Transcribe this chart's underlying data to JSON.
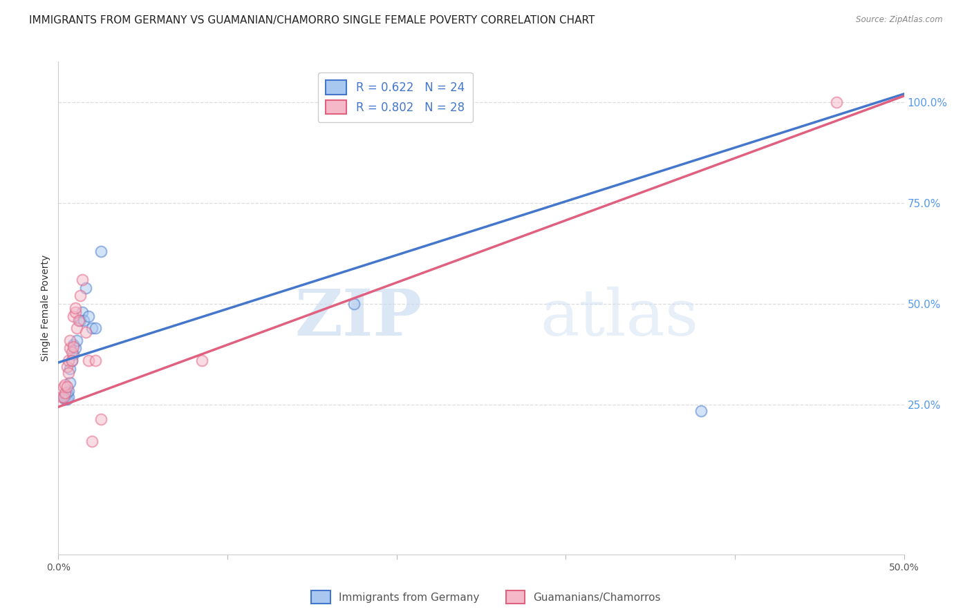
{
  "title": "IMMIGRANTS FROM GERMANY VS GUAMANIAN/CHAMORRO SINGLE FEMALE POVERTY CORRELATION CHART",
  "source": "Source: ZipAtlas.com",
  "ylabel": "Single Female Poverty",
  "xlim": [
    0,
    0.5
  ],
  "ylim": [
    -0.12,
    1.1
  ],
  "xticks": [
    0.0,
    0.1,
    0.2,
    0.3,
    0.4,
    0.5
  ],
  "xticklabels": [
    "0.0%",
    "",
    "",
    "",
    "",
    "50.0%"
  ],
  "yticks_right": [
    0.25,
    0.5,
    0.75,
    1.0
  ],
  "ytick_labels_right": [
    "25.0%",
    "50.0%",
    "75.0%",
    "100.0%"
  ],
  "legend_R1": "R = 0.622",
  "legend_N1": "N = 24",
  "legend_R2": "R = 0.802",
  "legend_N2": "N = 28",
  "label1": "Immigrants from Germany",
  "label2": "Guamanians/Chamorros",
  "color_blue": "#A8C8F0",
  "color_pink": "#F5B8C8",
  "line_blue": "#4477CC",
  "line_pink": "#E06080",
  "watermark_zip": "ZIP",
  "watermark_atlas": "atlas",
  "blue_points_x": [
    0.003,
    0.004,
    0.004,
    0.005,
    0.005,
    0.006,
    0.006,
    0.007,
    0.007,
    0.008,
    0.009,
    0.009,
    0.01,
    0.011,
    0.013,
    0.014,
    0.015,
    0.016,
    0.018,
    0.02,
    0.022,
    0.025,
    0.175,
    0.38
  ],
  "blue_points_y": [
    0.27,
    0.265,
    0.275,
    0.265,
    0.28,
    0.27,
    0.285,
    0.305,
    0.34,
    0.36,
    0.375,
    0.4,
    0.39,
    0.41,
    0.46,
    0.48,
    0.46,
    0.54,
    0.47,
    0.44,
    0.44,
    0.63,
    0.5,
    0.235
  ],
  "pink_points_x": [
    0.002,
    0.003,
    0.003,
    0.004,
    0.004,
    0.005,
    0.005,
    0.006,
    0.006,
    0.007,
    0.007,
    0.008,
    0.008,
    0.009,
    0.009,
    0.01,
    0.01,
    0.011,
    0.012,
    0.013,
    0.014,
    0.016,
    0.018,
    0.02,
    0.022,
    0.025,
    0.085,
    0.46
  ],
  "pink_points_y": [
    0.27,
    0.27,
    0.295,
    0.28,
    0.3,
    0.295,
    0.345,
    0.33,
    0.36,
    0.39,
    0.41,
    0.38,
    0.36,
    0.395,
    0.47,
    0.48,
    0.49,
    0.44,
    0.46,
    0.52,
    0.56,
    0.43,
    0.36,
    0.16,
    0.36,
    0.215,
    0.36,
    1.0
  ],
  "blue_line_x": [
    0.0,
    0.5
  ],
  "blue_line_y": [
    0.355,
    1.02
  ],
  "pink_line_x": [
    0.0,
    0.5
  ],
  "pink_line_y": [
    0.245,
    1.015
  ],
  "background_color": "#FFFFFF",
  "grid_color": "#DDDDDD",
  "title_fontsize": 11,
  "axis_label_fontsize": 10,
  "tick_fontsize": 10,
  "dot_size": 130,
  "dot_alpha": 0.5,
  "dot_linewidth": 1.5
}
